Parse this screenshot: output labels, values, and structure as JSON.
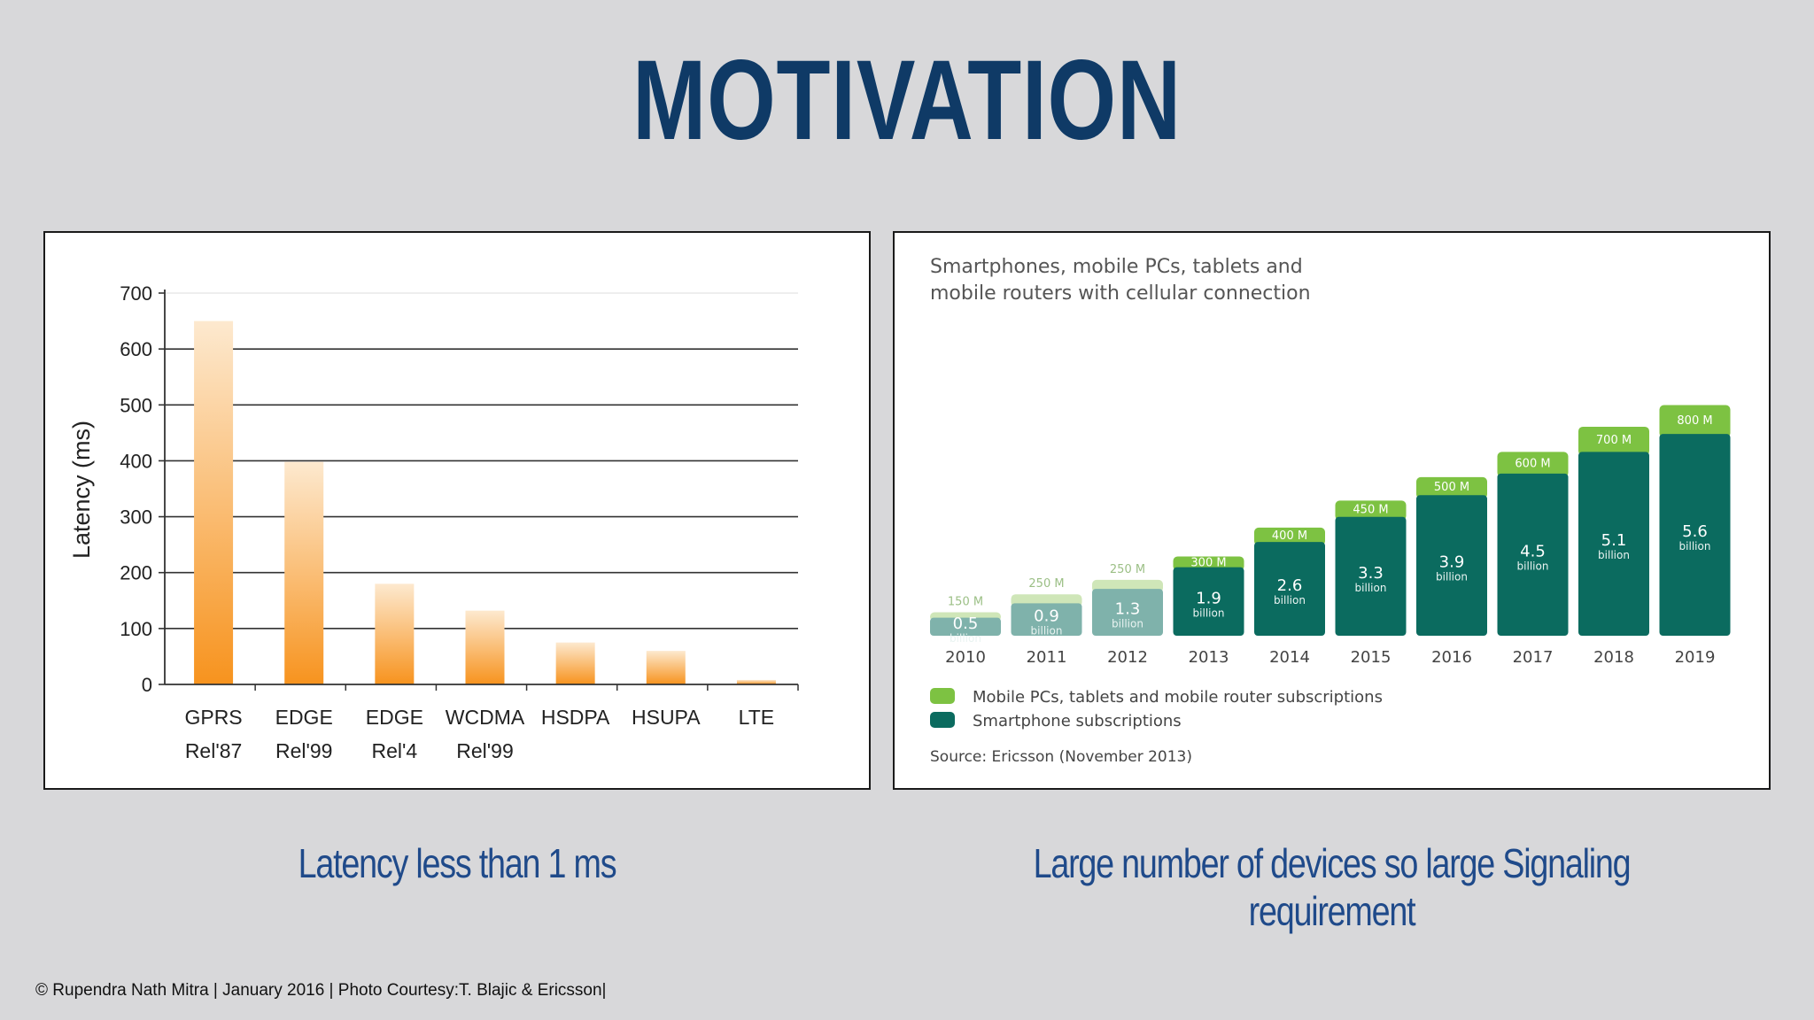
{
  "slide": {
    "title": "MOTIVATION",
    "caption_left": "Latency less than 1 ms",
    "caption_right": "Large number of devices so large Signaling requirement",
    "footer": "© Rupendra Nath Mitra | January 2016 | Photo Courtesy:T. Blajic & Ericsson|"
  },
  "colors": {
    "title": "#0f3a66",
    "caption": "#1f4a8a",
    "bar_top": "#fde9cf",
    "bar_bottom": "#f7931e",
    "smartphone": "#0b6b5f",
    "pc": "#7dc242",
    "pc_light": "#cfe6b8",
    "smartphone_light": "#7fb2ab"
  },
  "chart_data": [
    {
      "type": "bar",
      "title": "",
      "xlabel": "",
      "ylabel": "Latency (ms)",
      "ylim": [
        0,
        700
      ],
      "yticks": [
        "0",
        "100",
        "200",
        "300",
        "400",
        "500",
        "600",
        "700"
      ],
      "grid": true,
      "categories": [
        "GPRS",
        "EDGE",
        "EDGE",
        "WCDMA",
        "HSDPA",
        "HSUPA",
        "LTE"
      ],
      "sublabels": [
        "Rel'87",
        "Rel'99",
        "Rel'4",
        "Rel'99",
        "",
        "",
        ""
      ],
      "values": [
        650,
        398,
        180,
        132,
        75,
        60,
        8
      ]
    },
    {
      "type": "bar",
      "stacked": true,
      "title": "Smartphones, mobile PCs, tablets and",
      "subtitle": "mobile routers with cellular connection",
      "categories": [
        "2010",
        "2011",
        "2012",
        "2013",
        "2014",
        "2015",
        "2016",
        "2017",
        "2018",
        "2019"
      ],
      "unit": "billion",
      "series": [
        {
          "name": "Smartphone subscriptions",
          "values": [
            0.5,
            0.9,
            1.3,
            1.9,
            2.6,
            3.3,
            3.9,
            4.5,
            5.1,
            5.6
          ],
          "labels": [
            "0.5",
            "0.9",
            "1.3",
            "1.9",
            "2.6",
            "3.3",
            "3.9",
            "4.5",
            "5.1",
            "5.6"
          ]
        },
        {
          "name": "Mobile PCs, tablets and mobile router subscriptions",
          "values": [
            0.15,
            0.25,
            0.25,
            0.3,
            0.4,
            0.45,
            0.5,
            0.6,
            0.7,
            0.8
          ],
          "labels": [
            "150 M",
            "250 M",
            "250 M",
            "300 M",
            "400 M",
            "450 M",
            "500 M",
            "600 M",
            "700 M",
            "800 M"
          ]
        }
      ],
      "faded_years": [
        "2010",
        "2011",
        "2012"
      ],
      "legend": [
        "Mobile PCs, tablets and mobile router subscriptions",
        "Smartphone subscriptions"
      ],
      "source": "Source: Ericsson (November 2013)"
    }
  ]
}
